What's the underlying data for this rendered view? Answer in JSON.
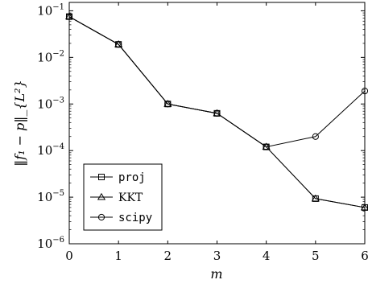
{
  "chart_data": {
    "type": "line",
    "xlabel": "m",
    "ylabel": "‖f₁ − p‖_{L²}",
    "y_scale": "log",
    "xlim": [
      0,
      6
    ],
    "ylim_exp": [
      -6,
      -1
    ],
    "x_ticks": [
      0,
      1,
      2,
      3,
      4,
      5,
      6
    ],
    "y_tick_exponents": [
      -6,
      -5,
      -4,
      -3,
      -2,
      -1
    ],
    "y_tick_base": "10",
    "grid": false,
    "legend_position": "lower-left",
    "series": [
      {
        "name": "proj",
        "marker": "square",
        "x": [
          0,
          1,
          2,
          3,
          4,
          5,
          6
        ],
        "y": [
          0.075,
          0.019,
          0.001,
          0.00063,
          0.00012,
          9.3e-06,
          6e-06
        ]
      },
      {
        "name": "KKT",
        "marker": "triangle",
        "x": [
          0,
          1,
          2,
          3,
          4,
          5,
          6
        ],
        "y": [
          0.075,
          0.019,
          0.001,
          0.00063,
          0.00012,
          9.3e-06,
          6e-06
        ]
      },
      {
        "name": "scipy",
        "marker": "circle",
        "x": [
          0,
          1,
          2,
          3,
          4,
          5,
          6
        ],
        "y": [
          0.075,
          0.019,
          0.001,
          0.00063,
          0.00012,
          0.0002,
          0.0019
        ]
      }
    ]
  }
}
